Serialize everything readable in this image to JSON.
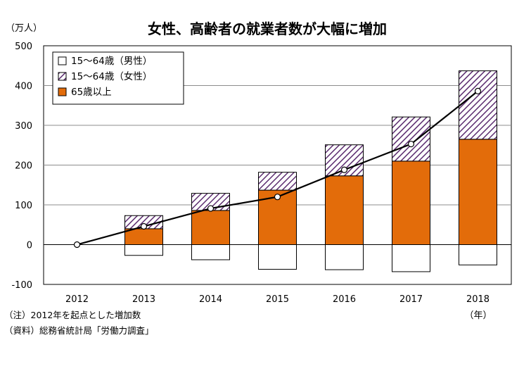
{
  "chart_data": {
    "type": "bar",
    "title": "女性、高齢者の就業者数が大幅に増加",
    "unit_label": "（万人）",
    "x_unit_label": "（年）",
    "categories": [
      "2012",
      "2013",
      "2014",
      "2015",
      "2016",
      "2017",
      "2018"
    ],
    "stacked": true,
    "ylim": [
      -100,
      500
    ],
    "yticks": [
      -100,
      0,
      100,
      200,
      300,
      400,
      500
    ],
    "grid": true,
    "legend_position": "top-left",
    "series": [
      {
        "name": "15～64歳（男性）",
        "kind": "bar",
        "style": "white",
        "values": [
          0,
          -27,
          -38,
          -62,
          -63,
          -68,
          -51
        ]
      },
      {
        "name": "15～64歳（女性）",
        "kind": "bar",
        "style": "hatched-purple",
        "values": [
          0,
          33,
          43,
          45,
          78,
          111,
          172
        ]
      },
      {
        "name": "65歳以上",
        "kind": "bar",
        "style": "orange",
        "values": [
          0,
          40,
          86,
          137,
          173,
          210,
          265
        ]
      },
      {
        "name": "",
        "kind": "line",
        "values": [
          0,
          46,
          91,
          120,
          188,
          253,
          386
        ]
      }
    ],
    "colors": {
      "orange": "#e36c0a",
      "hatch": "#5b2c6f",
      "line": "#000000"
    }
  },
  "notes": {
    "note1": "（注）2012年を起点とした増加数",
    "note2": "（資料）総務省統計局「労働力調査」"
  }
}
